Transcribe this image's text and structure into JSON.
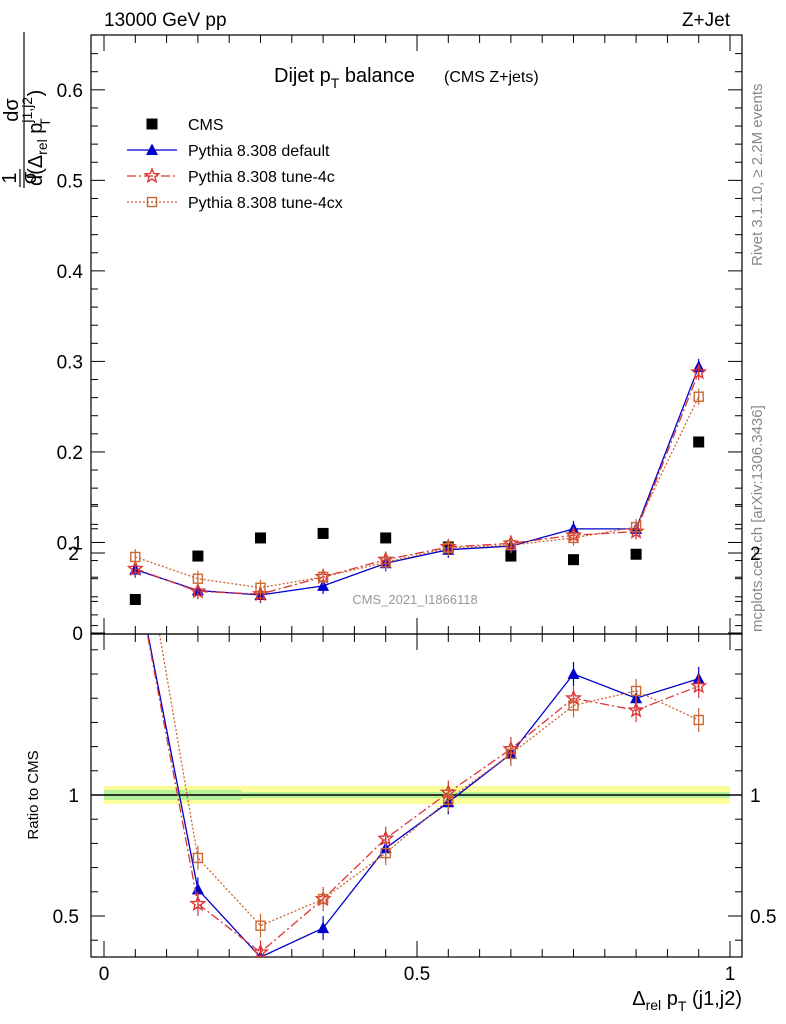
{
  "header": {
    "energy": "13000 GeV pp",
    "process": "Z+Jet",
    "rivet": "Rivet 3.1.10, ≥ 2.2M events",
    "site": "mcplots.cern.ch [arXiv:1306.3436]",
    "analysis": "CMS_2021_I1866118"
  },
  "chart_data": [
    {
      "type": "scatter",
      "title": "Dijet p_T balance",
      "title_note": "(CMS Z+jets)",
      "xlabel": "Δrel pT (j1,j2)",
      "ylabel": "1/σ dσ/d(Δrel pT^{j1,j2})",
      "xlim": [
        0,
        1
      ],
      "ylim": [
        0,
        0.66
      ],
      "yticks": [
        "0",
        "0.1",
        "0.2",
        "0.3",
        "0.4",
        "0.5",
        "0.6"
      ],
      "x": [
        0.05,
        0.15,
        0.25,
        0.35,
        0.45,
        0.55,
        0.65,
        0.75,
        0.85,
        0.95
      ],
      "legend_position": "top-left",
      "series": [
        {
          "name": "CMS",
          "color": "#000000",
          "marker": "square",
          "values": [
            0.037,
            0.085,
            0.105,
            0.11,
            0.105,
            0.095,
            0.085,
            0.081,
            0.087,
            0.211
          ]
        },
        {
          "name": "Pythia 8.308 default",
          "color": "#0000cc",
          "marker": "triangle",
          "line": "solid",
          "values": [
            0.07,
            0.047,
            0.042,
            0.052,
            0.077,
            0.092,
            0.096,
            0.115,
            0.115,
            0.294
          ]
        },
        {
          "name": "Pythia 8.308 tune-4c",
          "color": "#dd3333",
          "marker": "star",
          "line": "dashdot",
          "values": [
            0.071,
            0.046,
            0.043,
            0.062,
            0.081,
            0.095,
            0.099,
            0.108,
            0.112,
            0.288
          ]
        },
        {
          "name": "Pythia 8.308 tune-4cx",
          "color": "#cc6633",
          "marker": "open-square",
          "line": "dotted",
          "values": [
            0.084,
            0.06,
            0.05,
            0.062,
            0.078,
            0.094,
            0.097,
            0.105,
            0.117,
            0.261
          ]
        }
      ]
    },
    {
      "type": "scatter",
      "ylabel": "Ratio to CMS",
      "xlim": [
        0,
        1
      ],
      "ylim": [
        0.35,
        2.3
      ],
      "xticks": [
        "0",
        "0.5",
        "1"
      ],
      "yticks": [
        "0.5",
        "1",
        "2"
      ],
      "x": [
        0.05,
        0.15,
        0.25,
        0.35,
        0.45,
        0.55,
        0.65,
        0.75,
        0.85,
        0.95
      ],
      "series": [
        {
          "name": "Pythia 8.308 default",
          "color": "#0000cc",
          "values": [
            1.93,
            0.61,
            0.33,
            0.45,
            0.78,
            0.97,
            1.17,
            1.5,
            1.4,
            1.48
          ]
        },
        {
          "name": "Pythia 8.308 tune-4c",
          "color": "#dd3333",
          "values": [
            1.93,
            0.55,
            0.35,
            0.57,
            0.82,
            1.01,
            1.19,
            1.4,
            1.35,
            1.45
          ]
        },
        {
          "name": "Pythia 8.308 tune-4cx",
          "color": "#cc6633",
          "values": [
            2.25,
            0.74,
            0.46,
            0.57,
            0.76,
            0.98,
            1.17,
            1.37,
            1.43,
            1.31
          ]
        }
      ]
    }
  ]
}
